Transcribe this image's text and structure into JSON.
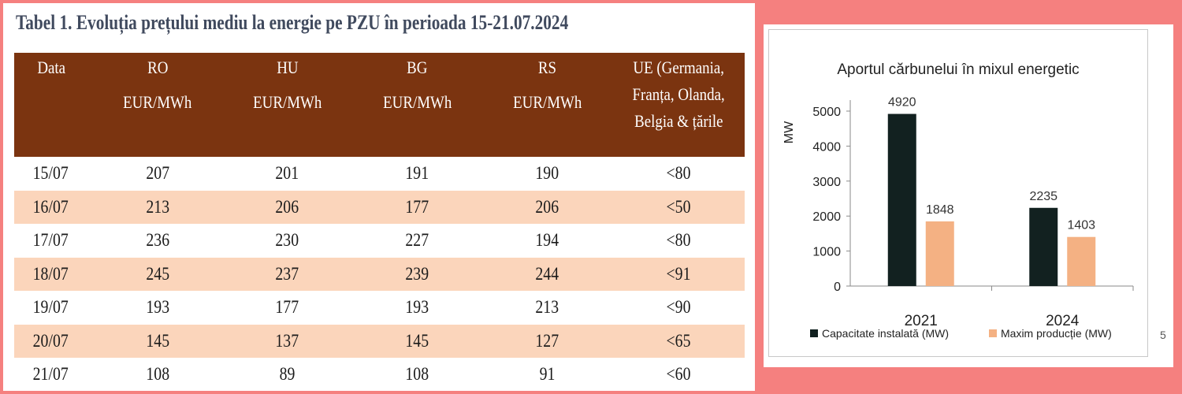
{
  "table": {
    "title": "Tabel 1. Evoluția prețului mediu la energie pe PZU în perioada 15-21.07.2024",
    "headers": [
      {
        "name": "Data",
        "unit": ""
      },
      {
        "name": "RO",
        "unit": "EUR/MWh"
      },
      {
        "name": "HU",
        "unit": "EUR/MWh"
      },
      {
        "name": "BG",
        "unit": "EUR/MWh"
      },
      {
        "name": "RS",
        "unit": "EUR/MWh"
      },
      {
        "name": "UE (Germania,",
        "line2": "Franța, Olanda,",
        "line3": "Belgia & țările"
      }
    ],
    "rows": [
      [
        "15/07",
        "207",
        "201",
        "191",
        "190",
        "<80"
      ],
      [
        "16/07",
        "213",
        "206",
        "177",
        "206",
        "<50"
      ],
      [
        "17/07",
        "236",
        "230",
        "227",
        "194",
        "<80"
      ],
      [
        "18/07",
        "245",
        "237",
        "239",
        "244",
        "<91"
      ],
      [
        "19/07",
        "193",
        "177",
        "193",
        "213",
        "<90"
      ],
      [
        "20/07",
        "145",
        "137",
        "145",
        "127",
        "<65"
      ],
      [
        "21/07",
        "108",
        "89",
        "108",
        "91",
        "<60"
      ]
    ],
    "colors": {
      "header_bg": "#7b3410",
      "alt_row_bg": "#fbd5bb"
    }
  },
  "chart_data": {
    "type": "bar",
    "title": "Aportul cărbunelui în mixul energetic",
    "ylabel": "MW",
    "xlabel": "",
    "categories": [
      "2021",
      "2024"
    ],
    "series": [
      {
        "name": "Capacitate instalată (MW)",
        "values": [
          4920,
          2235
        ],
        "color": "#122120"
      },
      {
        "name": "Maxim producție (MW)",
        "values": [
          1848,
          1403
        ],
        "color": "#f4b183"
      }
    ],
    "ylim": [
      0,
      5000
    ],
    "yticks": [
      "0",
      "1000",
      "2000",
      "3000",
      "4000",
      "5000"
    ],
    "legend": "bottom",
    "grid": false
  },
  "edge_char": "5"
}
